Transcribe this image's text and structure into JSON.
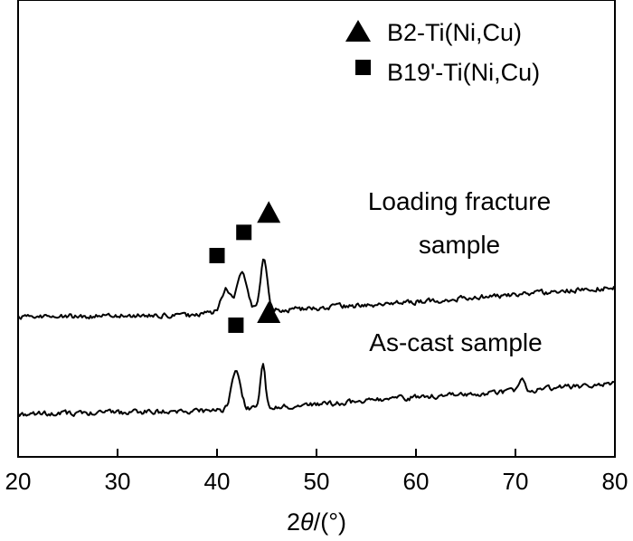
{
  "chart_data": {
    "type": "line",
    "title": "",
    "xlabel_prefix": "2",
    "xlabel_symbol": "θ",
    "xlabel_suffix": "/(°)",
    "ylabel": "",
    "xlim": [
      20,
      80
    ],
    "xticks": [
      20,
      30,
      40,
      50,
      60,
      70,
      80
    ],
    "grid": false,
    "legend_position": "top-right",
    "legend": [
      {
        "marker": "triangle",
        "label": "B2-Ti(Ni,Cu)"
      },
      {
        "marker": "square",
        "label": "B19'-Ti(Ni,Cu)"
      }
    ],
    "annotations": {
      "loading_line1": "Loading fracture",
      "loading_line2": "sample",
      "ascast": "As-cast sample"
    },
    "series": [
      {
        "key": "loading_fracture",
        "baseline": [
          [
            20,
            0.0
          ],
          [
            38,
            0.05
          ],
          [
            40,
            0.2
          ],
          [
            48,
            0.3
          ],
          [
            60,
            0.6
          ],
          [
            70,
            0.9
          ],
          [
            80,
            1.2
          ]
        ],
        "noise": 0.16,
        "peaks": [
          [
            40.9,
            0.9,
            0.45
          ],
          [
            42.5,
            1.55,
            0.5
          ],
          [
            44.7,
            2.15,
            0.33
          ]
        ],
        "peak_markers": [
          [
            40.0,
            2.5,
            "square"
          ],
          [
            42.7,
            3.45,
            "square"
          ],
          [
            45.2,
            4.25,
            "triangle"
          ]
        ]
      },
      {
        "key": "as_cast",
        "baseline": [
          [
            20,
            -4.0
          ],
          [
            40,
            -3.85
          ],
          [
            50,
            -3.6
          ],
          [
            60,
            -3.3
          ],
          [
            70,
            -3.05
          ],
          [
            78,
            -2.8
          ],
          [
            80,
            -2.7
          ]
        ],
        "noise": 0.16,
        "peaks": [
          [
            41.9,
            1.55,
            0.45
          ],
          [
            44.6,
            1.75,
            0.25
          ],
          [
            70.7,
            0.5,
            0.25
          ]
        ],
        "peak_markers": [
          [
            41.9,
            -0.35,
            "square"
          ],
          [
            45.2,
            0.15,
            "triangle"
          ]
        ]
      }
    ]
  }
}
